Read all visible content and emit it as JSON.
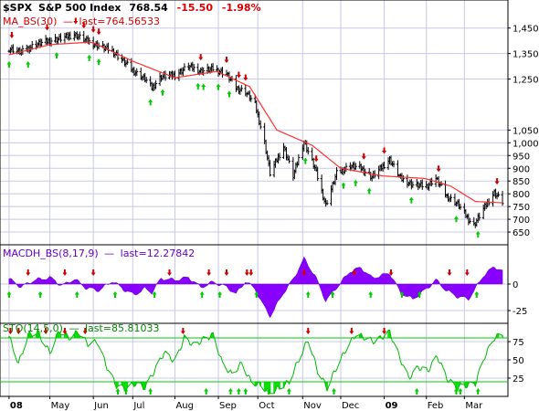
{
  "header": {
    "symbol": "$SPX",
    "name": "S&P 500 Index",
    "last": "768.54",
    "change": "-15.50",
    "change_pct": "-1.98%"
  },
  "chart_data": [
    {
      "type": "bar",
      "panel": "price",
      "series_label": "MA_BS(30)",
      "series_last": "last=764.56533",
      "ylim": [
        600,
        1560
      ],
      "y_ticks": [
        "1,450",
        "1,350",
        "1,250",
        "1,050",
        "1,000",
        "950",
        "900",
        "850",
        "800",
        "750",
        "700",
        "650"
      ],
      "y_tick_values": [
        1450,
        1350,
        1250,
        1050,
        1000,
        950,
        900,
        850,
        800,
        750,
        700,
        650
      ],
      "grid": true,
      "ma_color": "#ff0000",
      "up_marker_color": "#00cc00",
      "down_marker_color": "#cc0000",
      "close_points": [
        [
          "2008-04-01",
          1370
        ],
        [
          "2008-04-10",
          1355
        ],
        [
          "2008-04-20",
          1385
        ],
        [
          "2008-05-01",
          1400
        ],
        [
          "2008-05-10",
          1410
        ],
        [
          "2008-05-19",
          1425
        ],
        [
          "2008-05-28",
          1400
        ],
        [
          "2008-06-06",
          1380
        ],
        [
          "2008-06-16",
          1360
        ],
        [
          "2008-06-24",
          1320
        ],
        [
          "2008-07-02",
          1280
        ],
        [
          "2008-07-10",
          1250
        ],
        [
          "2008-07-15",
          1215
        ],
        [
          "2008-07-22",
          1260
        ],
        [
          "2008-08-01",
          1265
        ],
        [
          "2008-08-11",
          1300
        ],
        [
          "2008-08-20",
          1280
        ],
        [
          "2008-08-29",
          1290
        ],
        [
          "2008-09-08",
          1270
        ],
        [
          "2008-09-15",
          1215
        ],
        [
          "2008-09-22",
          1200
        ],
        [
          "2008-09-29",
          1150
        ],
        [
          "2008-10-06",
          1000
        ],
        [
          "2008-10-10",
          880
        ],
        [
          "2008-10-20",
          985
        ],
        [
          "2008-10-27",
          870
        ],
        [
          "2008-11-04",
          1005
        ],
        [
          "2008-11-12",
          900
        ],
        [
          "2008-11-20",
          755
        ],
        [
          "2008-11-28",
          880
        ],
        [
          "2008-12-08",
          910
        ],
        [
          "2008-12-16",
          900
        ],
        [
          "2008-12-24",
          865
        ],
        [
          "2009-01-06",
          935
        ],
        [
          "2009-01-14",
          860
        ],
        [
          "2009-01-23",
          835
        ],
        [
          "2009-02-02",
          830
        ],
        [
          "2009-02-09",
          860
        ],
        [
          "2009-02-17",
          790
        ],
        [
          "2009-02-25",
          760
        ],
        [
          "2009-03-05",
          700
        ],
        [
          "2009-03-09",
          677
        ],
        [
          "2009-03-16",
          740
        ],
        [
          "2009-03-24",
          805
        ],
        [
          "2009-03-30",
          768.54
        ]
      ],
      "ma_points": [
        [
          "2008-04-01",
          1345
        ],
        [
          "2008-05-01",
          1385
        ],
        [
          "2008-06-01",
          1395
        ],
        [
          "2008-07-01",
          1320
        ],
        [
          "2008-08-01",
          1255
        ],
        [
          "2008-09-01",
          1280
        ],
        [
          "2008-09-25",
          1220
        ],
        [
          "2008-10-15",
          1050
        ],
        [
          "2008-11-10",
          990
        ],
        [
          "2008-12-01",
          900
        ],
        [
          "2009-01-01",
          870
        ],
        [
          "2009-02-01",
          860
        ],
        [
          "2009-02-20",
          830
        ],
        [
          "2009-03-10",
          770
        ],
        [
          "2009-03-30",
          764.57
        ]
      ],
      "up_markers": [
        "2008-04-01",
        "2008-04-15",
        "2008-05-06",
        "2008-05-30",
        "2008-06-06",
        "2008-07-14",
        "2008-07-23",
        "2008-08-18",
        "2008-08-22",
        "2008-09-02",
        "2008-09-10",
        "2008-11-05",
        "2008-12-03",
        "2008-12-12",
        "2008-12-22",
        "2009-01-22",
        "2009-02-24",
        "2009-03-12"
      ],
      "down_markers": [
        "2008-04-03",
        "2008-04-29",
        "2008-05-20",
        "2008-05-26",
        "2008-06-02",
        "2008-06-06",
        "2008-08-20",
        "2008-09-08",
        "2008-09-17",
        "2008-09-22",
        "2008-11-13",
        "2008-12-18",
        "2009-01-02",
        "2009-02-11",
        "2009-03-26"
      ]
    },
    {
      "type": "area",
      "panel": "macd",
      "series_label": "MACDH_BS(8,17,9)",
      "series_last": "last=12.27842",
      "ylim": [
        -37,
        37
      ],
      "y_ticks": [
        "0",
        "-25"
      ],
      "y_tick_values": [
        0,
        -25
      ],
      "grid": true,
      "fill_color": "#8800ff",
      "points": [
        [
          "2008-04-01",
          5
        ],
        [
          "2008-04-10",
          -3
        ],
        [
          "2008-04-20",
          4
        ],
        [
          "2008-05-01",
          6
        ],
        [
          "2008-05-10",
          -2
        ],
        [
          "2008-05-19",
          5
        ],
        [
          "2008-05-28",
          -4
        ],
        [
          "2008-06-06",
          -6
        ],
        [
          "2008-06-16",
          3
        ],
        [
          "2008-06-24",
          -5
        ],
        [
          "2008-07-02",
          -10
        ],
        [
          "2008-07-10",
          -4
        ],
        [
          "2008-07-15",
          -8
        ],
        [
          "2008-07-22",
          5
        ],
        [
          "2008-08-01",
          4
        ],
        [
          "2008-08-11",
          6
        ],
        [
          "2008-08-20",
          -3
        ],
        [
          "2008-08-29",
          2
        ],
        [
          "2008-09-08",
          -3
        ],
        [
          "2008-09-15",
          -9
        ],
        [
          "2008-09-22",
          3
        ],
        [
          "2008-09-29",
          -5
        ],
        [
          "2008-10-06",
          -22
        ],
        [
          "2008-10-10",
          -30
        ],
        [
          "2008-10-20",
          -8
        ],
        [
          "2008-10-27",
          4
        ],
        [
          "2008-11-04",
          24
        ],
        [
          "2008-11-12",
          8
        ],
        [
          "2008-11-20",
          -16
        ],
        [
          "2008-11-28",
          -3
        ],
        [
          "2008-12-08",
          12
        ],
        [
          "2008-12-16",
          15
        ],
        [
          "2008-12-24",
          6
        ],
        [
          "2009-01-06",
          10
        ],
        [
          "2009-01-14",
          -8
        ],
        [
          "2009-01-23",
          -14
        ],
        [
          "2009-02-02",
          -5
        ],
        [
          "2009-02-09",
          4
        ],
        [
          "2009-02-17",
          -6
        ],
        [
          "2009-02-25",
          -12
        ],
        [
          "2009-03-05",
          -14
        ],
        [
          "2009-03-09",
          -6
        ],
        [
          "2009-03-16",
          8
        ],
        [
          "2009-03-24",
          16
        ],
        [
          "2009-03-30",
          12.28
        ]
      ],
      "up_markers": [
        "2008-04-01",
        "2008-04-24",
        "2008-05-21",
        "2008-06-18",
        "2008-07-17",
        "2008-08-21",
        "2008-09-03",
        "2008-09-30",
        "2008-11-07",
        "2008-11-25",
        "2008-12-23",
        "2009-01-15",
        "2009-01-28",
        "2009-03-11"
      ],
      "down_markers": [
        "2008-04-15",
        "2008-05-12",
        "2008-06-02",
        "2008-07-28",
        "2008-08-26",
        "2008-09-08",
        "2008-09-23",
        "2008-09-26",
        "2008-11-04",
        "2008-12-11",
        "2009-01-07",
        "2009-02-19",
        "2009-03-04"
      ]
    },
    {
      "type": "line",
      "panel": "stochastic",
      "series_label": "STO(14,5,0)",
      "series_last": "last=85.81033",
      "ylim": [
        0,
        100
      ],
      "y_ticks": [
        "75",
        "50",
        "25"
      ],
      "y_tick_values": [
        75,
        50,
        25
      ],
      "overbought": 80,
      "oversold": 20,
      "grid": true,
      "line_color": "#00cc00",
      "points": [
        [
          "2008-04-01",
          82
        ],
        [
          "2008-04-08",
          45
        ],
        [
          "2008-04-15",
          84
        ],
        [
          "2008-04-22",
          88
        ],
        [
          "2008-05-01",
          60
        ],
        [
          "2008-05-08",
          90
        ],
        [
          "2008-05-15",
          80
        ],
        [
          "2008-05-22",
          88
        ],
        [
          "2008-05-29",
          72
        ],
        [
          "2008-06-05",
          75
        ],
        [
          "2008-06-12",
          40
        ],
        [
          "2008-06-19",
          15
        ],
        [
          "2008-06-26",
          10
        ],
        [
          "2008-07-03",
          18
        ],
        [
          "2008-07-10",
          12
        ],
        [
          "2008-07-17",
          35
        ],
        [
          "2008-07-24",
          60
        ],
        [
          "2008-08-01",
          48
        ],
        [
          "2008-08-08",
          80
        ],
        [
          "2008-08-15",
          70
        ],
        [
          "2008-08-22",
          78
        ],
        [
          "2008-08-29",
          84
        ],
        [
          "2008-09-05",
          45
        ],
        [
          "2008-09-12",
          30
        ],
        [
          "2008-09-19",
          45
        ],
        [
          "2008-09-26",
          20
        ],
        [
          "2008-10-03",
          15
        ],
        [
          "2008-10-10",
          5
        ],
        [
          "2008-10-17",
          12
        ],
        [
          "2008-10-24",
          20
        ],
        [
          "2008-10-31",
          50
        ],
        [
          "2008-11-07",
          78
        ],
        [
          "2008-11-14",
          35
        ],
        [
          "2008-11-21",
          12
        ],
        [
          "2008-11-28",
          40
        ],
        [
          "2008-12-05",
          65
        ],
        [
          "2008-12-12",
          85
        ],
        [
          "2008-12-19",
          80
        ],
        [
          "2008-12-26",
          75
        ],
        [
          "2009-01-06",
          88
        ],
        [
          "2009-01-13",
          55
        ],
        [
          "2009-01-20",
          25
        ],
        [
          "2009-01-27",
          40
        ],
        [
          "2009-02-03",
          35
        ],
        [
          "2009-02-10",
          55
        ],
        [
          "2009-02-17",
          25
        ],
        [
          "2009-02-24",
          12
        ],
        [
          "2009-03-03",
          15
        ],
        [
          "2009-03-10",
          18
        ],
        [
          "2009-03-17",
          55
        ],
        [
          "2009-03-24",
          80
        ],
        [
          "2009-03-30",
          85.81
        ]
      ],
      "up_markers": [
        "2008-06-20",
        "2008-06-26",
        "2008-07-14",
        "2008-08-24",
        "2008-09-11",
        "2008-09-17",
        "2008-09-22",
        "2008-10-09",
        "2008-10-24",
        "2008-11-26",
        "2009-01-26",
        "2009-02-24",
        "2009-02-27",
        "2009-03-12"
      ],
      "down_markers": [
        "2008-04-02",
        "2008-04-08",
        "2008-04-28",
        "2008-05-12",
        "2008-05-27",
        "2008-08-07",
        "2008-11-07",
        "2008-12-09",
        "2009-01-02"
      ]
    }
  ],
  "x_axis": {
    "labels": [
      "08",
      "May",
      "Jun",
      "Jul",
      "Aug",
      "Sep",
      "Oct",
      "Nov",
      "Dec",
      "09",
      "Feb",
      "Mar"
    ],
    "bold_labels": [
      "08",
      "09"
    ],
    "dates": [
      "2008-04-01",
      "2008-05-01",
      "2008-06-02",
      "2008-07-01",
      "2008-08-01",
      "2008-09-02",
      "2008-10-01",
      "2008-11-03",
      "2008-12-01",
      "2009-01-02",
      "2009-02-02",
      "2009-03-02"
    ],
    "start": "2008-03-26",
    "end": "2009-04-01"
  }
}
